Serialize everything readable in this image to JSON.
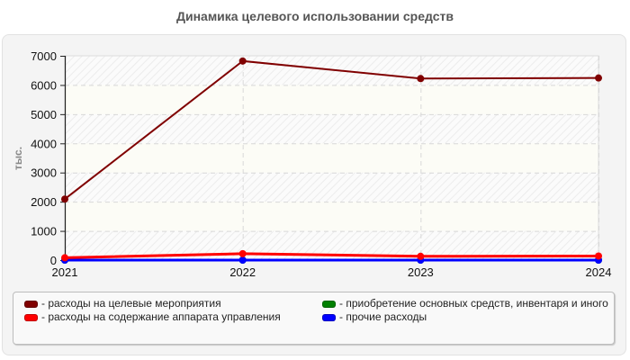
{
  "chart_data": {
    "type": "line",
    "title": "Динамика целевого использовании средств",
    "xlabel": "",
    "ylabel": "тыс.",
    "categories": [
      "2021",
      "2022",
      "2023",
      "2024"
    ],
    "ylim": [
      0,
      7000
    ],
    "yticks": [
      "0",
      "1000",
      "2000",
      "3000",
      "4000",
      "5000",
      "6000",
      "7000"
    ],
    "grid": true,
    "legend_position": "bottom",
    "series": [
      {
        "name": "расходы на целевые мероприятия",
        "color": "#800000",
        "values": [
          2090,
          6820,
          6220,
          6240
        ]
      },
      {
        "name": "расходы на содержание аппарата управления",
        "color": "#ff0000",
        "values": [
          80,
          220,
          130,
          140
        ]
      },
      {
        "name": "приобретение основных средств, инвентаря и иного",
        "color": "#008000",
        "values": [
          0,
          0,
          0,
          0
        ]
      },
      {
        "name": "прочие расходы",
        "color": "#0000ff",
        "values": [
          0,
          0,
          0,
          0
        ]
      }
    ]
  },
  "legend": {
    "items": [
      {
        "label": "- расходы на целевые мероприятия",
        "color": "#800000"
      },
      {
        "label": "- расходы на содержание аппарата управления",
        "color": "#ff0000"
      },
      {
        "label": "- приобретение основных средств, инвентаря и иного",
        "color": "#008000"
      },
      {
        "label": "- прочие расходы",
        "color": "#0000ff"
      }
    ]
  }
}
